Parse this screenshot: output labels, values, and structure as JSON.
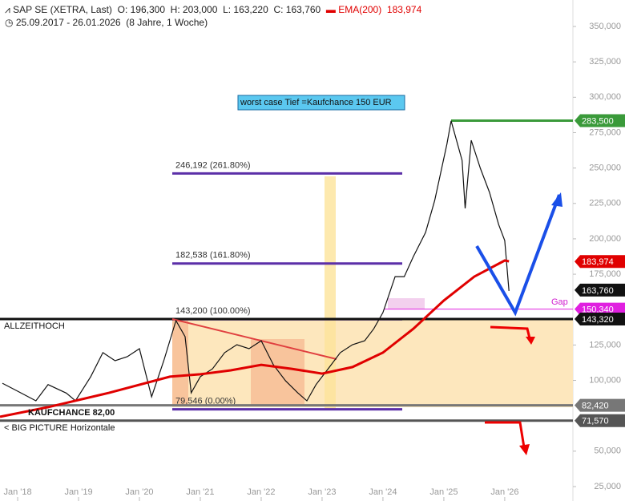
{
  "header": {
    "ohlc": [
      "O: 196,300",
      "H: 203,000",
      "L: 163,220",
      "C: 163,760"
    ],
    "ema_value": "183,974",
    "range": "25.09.2017 - 26.01.2026",
    "period": "(8 Jahre, 1 Woche)"
  },
  "chart_data": {
    "type": "line",
    "series": [
      {
        "name": "SAP SE (XETRA, Last)",
        "color": "#111111",
        "x": [
          2017.75,
          2018.0,
          2018.3,
          2018.5,
          2018.8,
          2018.95,
          2019.2,
          2019.4,
          2019.6,
          2019.8,
          2020.0,
          2020.2,
          2020.4,
          2020.6,
          2020.75,
          2020.85,
          2021.0,
          2021.2,
          2021.4,
          2021.6,
          2021.8,
          2022.0,
          2022.2,
          2022.4,
          2022.6,
          2022.75,
          2022.9,
          2023.1,
          2023.3,
          2023.5,
          2023.7,
          2023.85,
          2024.0,
          2024.2,
          2024.35,
          2024.5,
          2024.7,
          2024.85,
          2025.05,
          2025.12,
          2025.3,
          2025.35,
          2025.45,
          2025.6,
          2025.75,
          2025.9,
          2026.0,
          2026.07
        ],
        "values": [
          98,
          92.4,
          85.6,
          97,
          91,
          85.6,
          102.6,
          119.6,
          113.9,
          116.7,
          122.4,
          88.4,
          113.9,
          142.2,
          130.9,
          91.2,
          102.6,
          108.2,
          119.6,
          125.2,
          122.4,
          128,
          111,
          99.7,
          91.2,
          85.6,
          97,
          108.2,
          119.6,
          125.2,
          128,
          136.5,
          147.9,
          173.3,
          173.3,
          187.5,
          204.5,
          227.1,
          266.8,
          283.3,
          255.4,
          221.5,
          269.6,
          249.8,
          232.8,
          210.1,
          198.8,
          163.2
        ]
      },
      {
        "name": "EMA(200)",
        "color": "#e00000",
        "x": [
          2017.71,
          2018.5,
          2019.5,
          2020.5,
          2021.0,
          2021.5,
          2022.0,
          2022.5,
          2023.0,
          2023.5,
          2024.0,
          2024.5,
          2025.0,
          2025.5,
          2026.0,
          2026.07
        ],
        "values": [
          74.3,
          81.1,
          91.2,
          102.6,
          104.3,
          107.1,
          111,
          108.2,
          104.8,
          109.4,
          119.6,
          136.5,
          156.4,
          173.3,
          184.7,
          184.1
        ]
      }
    ],
    "xlim": [
      2017.71,
      2027.12
    ],
    "xticks": [
      {
        "value": 2018,
        "label": "Jan '18"
      },
      {
        "value": 2019,
        "label": "Jan '19"
      },
      {
        "value": 2020,
        "label": "Jan '20"
      },
      {
        "value": 2021,
        "label": "Jan '21"
      },
      {
        "value": 2022,
        "label": "Jan '22"
      },
      {
        "value": 2023,
        "label": "Jan '23"
      },
      {
        "value": 2024,
        "label": "Jan '24"
      },
      {
        "value": 2025,
        "label": "Jan '25"
      },
      {
        "value": 2026,
        "label": "Jan '26"
      }
    ],
    "ylim": [
      14.8,
      368.7
    ],
    "yticks": [
      {
        "value": 25,
        "label": "25,000"
      },
      {
        "value": 50,
        "label": "50,000"
      },
      {
        "value": 100,
        "label": "100,000"
      },
      {
        "value": 125,
        "label": "125,000"
      },
      {
        "value": 175,
        "label": "175,000"
      },
      {
        "value": 200,
        "label": "200,000"
      },
      {
        "value": 225,
        "label": "225,000"
      },
      {
        "value": 250,
        "label": "250,000"
      },
      {
        "value": 275,
        "label": "275,000"
      },
      {
        "value": 300,
        "label": "300,000"
      },
      {
        "value": 325,
        "label": "325,000"
      },
      {
        "value": 350,
        "label": "350,000"
      }
    ],
    "fib_levels": [
      {
        "value": 246.192,
        "label": "246,192 (261.80%)"
      },
      {
        "value": 182.538,
        "label": "182,538 (161.80%)"
      },
      {
        "value": 143.2,
        "label": "143,200 (100.00%)"
      },
      {
        "value": 79.546,
        "label": "79,546 (0.00%)"
      }
    ],
    "price_tags": [
      {
        "value": 283.5,
        "label": "283,500",
        "color": "#3a9a3a"
      },
      {
        "value": 183.974,
        "label": "183,974",
        "color": "#e00000"
      },
      {
        "value": 163.76,
        "label": "163,760",
        "color": "#111111"
      },
      {
        "value": 150.34,
        "label": "150,340",
        "color": "#e020e0"
      },
      {
        "value": 143.32,
        "label": "143,320",
        "color": "#111111"
      },
      {
        "value": 82.42,
        "label": "82,420",
        "color": "#777777"
      },
      {
        "value": 71.57,
        "label": "71,570",
        "color": "#555555"
      }
    ],
    "annotations": {
      "ath": "ALLZEITHOCH",
      "buy": "KAUFCHANCE 82,00",
      "big": "< BIG PICTURE Horizontale",
      "gap": "Gap",
      "worst": "worst case Tief =Kaufchance 150 EUR"
    }
  }
}
